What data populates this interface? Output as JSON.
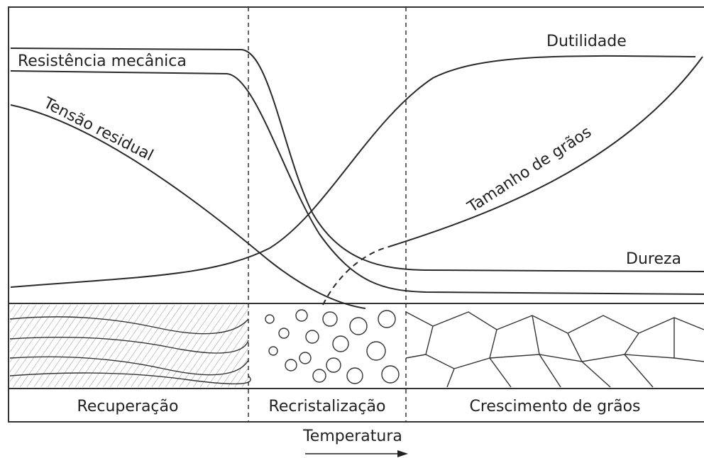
{
  "curves": {
    "resistencia": "Resistência mecânica",
    "tensao": "Tensão residual",
    "dutilidade": "Dutilidade",
    "tamanho": "Tamanho de grãos",
    "dureza": "Dureza"
  },
  "stages": [
    "Recuperação",
    "Recristalização",
    "Crescimento de grãos"
  ],
  "axis_label": "Temperatura"
}
